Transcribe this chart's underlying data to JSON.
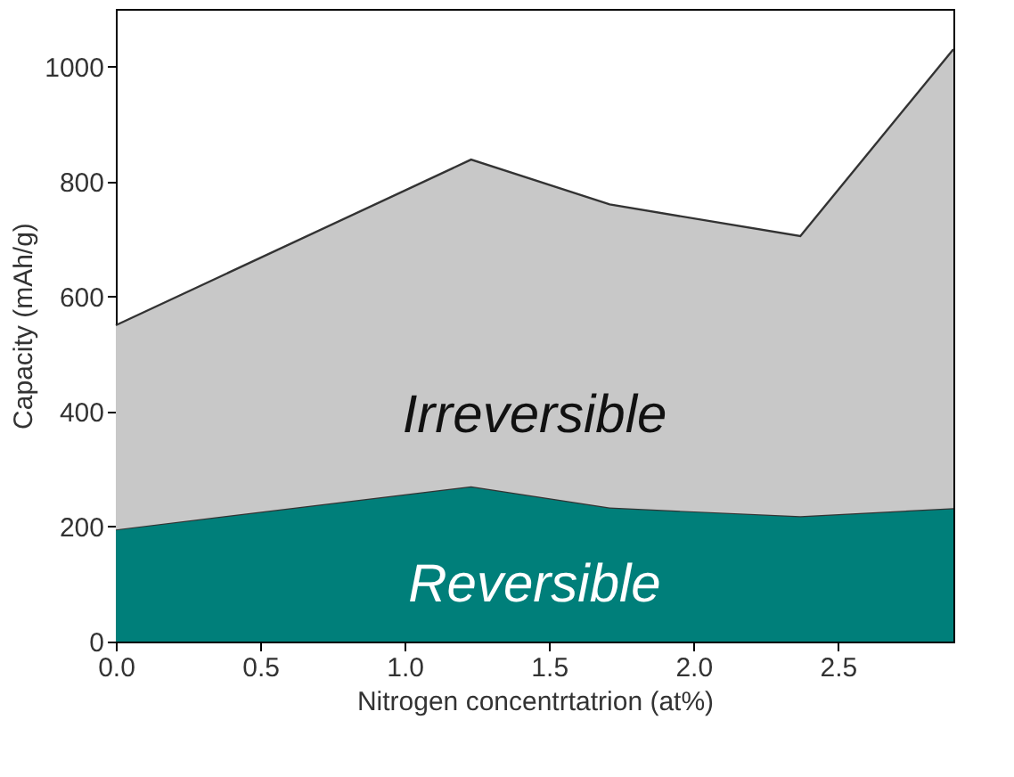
{
  "chart_data": {
    "type": "area",
    "stacked": true,
    "xlabel": "Nitrogen concentrtatrion (at%)",
    "ylabel": "Capacity (mAh/g)",
    "x": [
      0,
      1.23,
      1.71,
      2.37,
      2.9
    ],
    "series": [
      {
        "name": "Reversible",
        "color": "#007f7a",
        "values": [
          195,
          270,
          233,
          218,
          232
        ]
      },
      {
        "name": "Irreversible",
        "color": "#c8c8c8",
        "values": [
          355,
          568,
          527,
          487,
          798
        ]
      }
    ],
    "xlim": [
      0,
      2.9
    ],
    "xticks": [
      {
        "value": 0,
        "label": "0.0"
      },
      {
        "value": 0.5,
        "label": "0.5"
      },
      {
        "value": 1,
        "label": "1.0"
      },
      {
        "value": 1.5,
        "label": "1.5"
      },
      {
        "value": 2,
        "label": "2.0"
      },
      {
        "value": 2.5,
        "label": "2.5"
      }
    ],
    "ylim": [
      0,
      1100
    ],
    "yticks": [
      0,
      200,
      400,
      600,
      800,
      1000
    ],
    "grid": false
  }
}
